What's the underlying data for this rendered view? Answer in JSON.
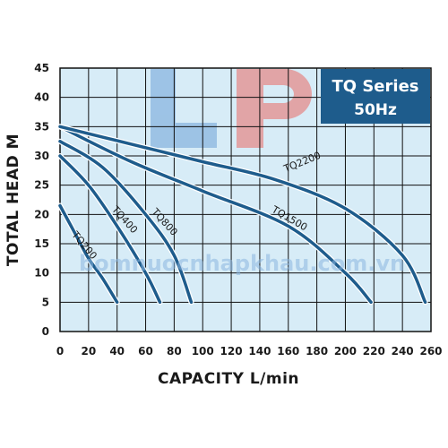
{
  "chart_data": {
    "type": "line",
    "xlabel": "CAPACITY L/min",
    "ylabel": "TOTAL HEAD M",
    "xlim": [
      0,
      260
    ],
    "ylim": [
      0,
      45
    ],
    "x_ticks": [
      "0",
      "20",
      "40",
      "60",
      "80",
      "100",
      "120",
      "140",
      "160",
      "180",
      "200",
      "220",
      "240",
      "260"
    ],
    "y_ticks": [
      "0",
      "5",
      "10",
      "15",
      "20",
      "25",
      "30",
      "35",
      "40",
      "45"
    ],
    "grid": true,
    "legend_title": "TQ Series",
    "legend_subtitle": "50Hz",
    "series": [
      {
        "name": "TQ200",
        "x": [
          0,
          10,
          20,
          30,
          40
        ],
        "y": [
          21.5,
          17,
          12.5,
          9,
          5
        ]
      },
      {
        "name": "TQ400",
        "x": [
          0,
          20,
          40,
          60,
          70
        ],
        "y": [
          30,
          25,
          18,
          10,
          5
        ]
      },
      {
        "name": "TQ800",
        "x": [
          0,
          30,
          60,
          80,
          92
        ],
        "y": [
          32.5,
          28,
          20,
          13,
          5
        ]
      },
      {
        "name": "TQ1500",
        "x": [
          0,
          50,
          100,
          160,
          200,
          218
        ],
        "y": [
          35,
          29,
          24,
          18,
          10,
          5
        ]
      },
      {
        "name": "TQ2200",
        "x": [
          0,
          50,
          100,
          150,
          200,
          240,
          256
        ],
        "y": [
          35,
          32,
          29,
          26,
          21,
          13,
          5
        ]
      }
    ]
  },
  "watermark": {
    "logo_letters": "LP",
    "url_text": "bomnuocnhapkhau.com.vn"
  },
  "colors": {
    "curve": "#1e5c8c",
    "badge": "#1e5c8c",
    "panel": "#d7ecf7",
    "grid": "#111111",
    "watermark_blue": "#8ab6e0",
    "watermark_red": "#e58c8c"
  }
}
